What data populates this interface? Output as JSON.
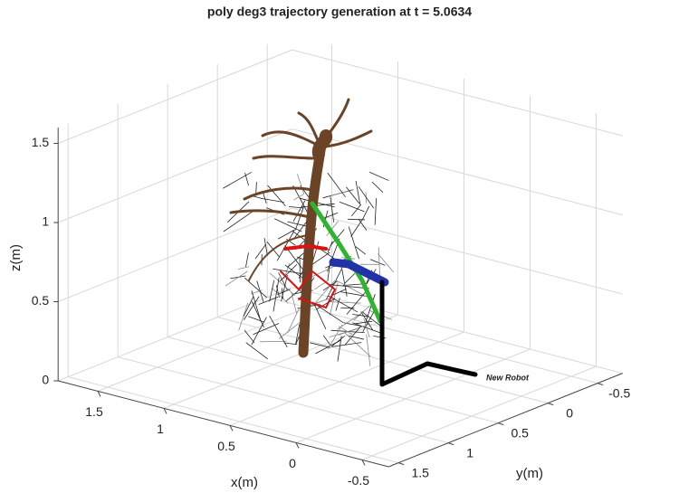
{
  "chart_data": {
    "type": "surface3d",
    "title": "poly deg3 trajectory generation at t = 5.0634",
    "xlabel": "x(m)",
    "ylabel": "y(m)",
    "zlabel": "z(m)",
    "xlim": [
      -0.7,
      1.8
    ],
    "ylim": [
      -0.75,
      1.6
    ],
    "zlim": [
      0,
      1.6
    ],
    "xticks": [
      1.5,
      1,
      0.5,
      0,
      -0.5
    ],
    "yticks": [
      -0.5,
      0,
      0.5,
      1,
      1.5
    ],
    "zticks": [
      0,
      0.5,
      1,
      1.5
    ],
    "grid": true,
    "annotations": [
      "New Robot"
    ]
  }
}
